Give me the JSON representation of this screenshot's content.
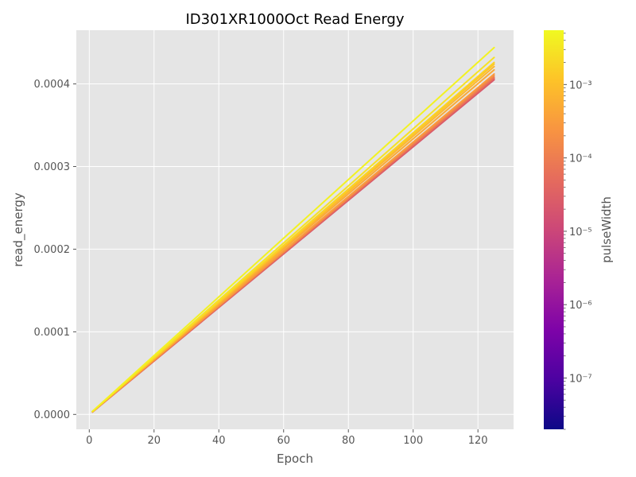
{
  "chart_data": {
    "type": "line",
    "title": "ID301XR1000Oct Read Energy",
    "xlabel": "Epoch",
    "ylabel": "read_energy",
    "xlim": [
      -4,
      131
    ],
    "ylim": [
      -1.8e-05,
      0.000465
    ],
    "xticks": [
      0,
      20,
      40,
      60,
      80,
      100,
      120
    ],
    "yticks": [
      0.0,
      0.0001,
      0.0002,
      0.0003,
      0.0004
    ],
    "ytick_labels": [
      "0.0000",
      "0.0001",
      "0.0002",
      "0.0003",
      "0.0004"
    ],
    "grid": true,
    "style": "ggplot",
    "colorbar": {
      "label": "pulseWidth",
      "scale": "log",
      "colormap": "plasma",
      "range": [
        2e-08,
        0.0055
      ],
      "ticks": [
        {
          "value": 1e-07,
          "label": "10⁻⁷"
        },
        {
          "value": 1e-06,
          "label": "10⁻⁶"
        },
        {
          "value": 1e-05,
          "label": "10⁻⁵"
        },
        {
          "value": 0.0001,
          "label": "10⁻⁴"
        },
        {
          "value": 0.001,
          "label": "10⁻³"
        }
      ]
    },
    "series": [
      {
        "pulseWidth": 2e-05,
        "x": [
          1,
          125
        ],
        "y": [
          3e-06,
          0.000405
        ]
      },
      {
        "pulseWidth": 4e-05,
        "x": [
          1,
          125
        ],
        "y": [
          3e-06,
          0.0004065
        ]
      },
      {
        "pulseWidth": 8e-05,
        "x": [
          1,
          125
        ],
        "y": [
          3.2e-06,
          0.000408
        ]
      },
      {
        "pulseWidth": 0.00016,
        "x": [
          1,
          125
        ],
        "y": [
          3.2e-06,
          0.00041
        ]
      },
      {
        "pulseWidth": 0.0003,
        "x": [
          1,
          125
        ],
        "y": [
          3.3e-06,
          0.000412
        ]
      },
      {
        "pulseWidth": 0.0005,
        "x": [
          1,
          125
        ],
        "y": [
          3.4e-06,
          0.000417
        ]
      },
      {
        "pulseWidth": 0.0008,
        "x": [
          1,
          125
        ],
        "y": [
          3.5e-06,
          0.000421
        ]
      },
      {
        "pulseWidth": 0.0012,
        "x": [
          1,
          125
        ],
        "y": [
          3.5e-06,
          0.000424
        ]
      },
      {
        "pulseWidth": 0.0018,
        "x": [
          1,
          125
        ],
        "y": [
          3.6e-06,
          0.000426
        ]
      },
      {
        "pulseWidth": 0.0028,
        "x": [
          1,
          125
        ],
        "y": [
          3.7e-06,
          0.000432
        ]
      },
      {
        "pulseWidth": 0.0045,
        "x": [
          1,
          125
        ],
        "y": [
          3.8e-06,
          0.000444
        ]
      }
    ]
  }
}
